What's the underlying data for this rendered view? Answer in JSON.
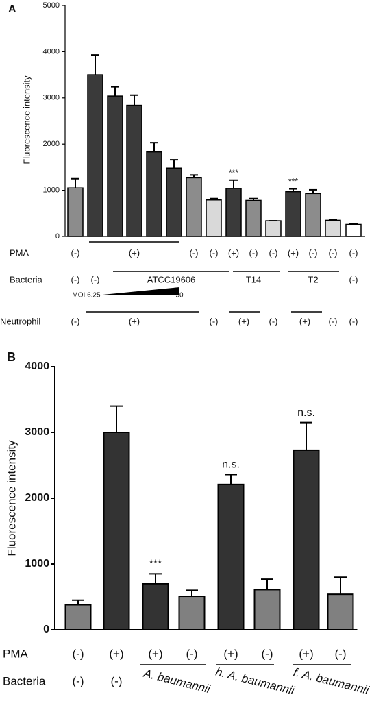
{
  "chart_data": [
    {
      "type": "bar",
      "panel_label": "A",
      "y_label": "Fluorescence intensity",
      "ylim": [
        0,
        5000
      ],
      "yticks": [
        0,
        1000,
        2000,
        3000,
        4000,
        5000
      ],
      "values": [
        1050,
        3500,
        3040,
        2840,
        1830,
        1480,
        1270,
        790,
        1040,
        780,
        340,
        970,
        930,
        350,
        260
      ],
      "errors": [
        200,
        430,
        200,
        220,
        200,
        180,
        60,
        30,
        180,
        40,
        0,
        60,
        80,
        20,
        10
      ],
      "colors": [
        "#8c8c8c",
        "#3a3a3a",
        "#3a3a3a",
        "#3a3a3a",
        "#3a3a3a",
        "#3a3a3a",
        "#8c8c8c",
        "#d9d9d9",
        "#3a3a3a",
        "#8c8c8c",
        "#d9d9d9",
        "#3a3a3a",
        "#8c8c8c",
        "#d9d9d9",
        "#ffffff"
      ],
      "bar_annotations": [
        null,
        null,
        null,
        null,
        null,
        null,
        null,
        null,
        "***",
        null,
        null,
        "***",
        null,
        null,
        null
      ],
      "table_rows": [
        {
          "label": "PMA",
          "cells": [
            "(-)",
            "(+)",
            "(-)",
            "(-)",
            "(+)",
            "(-)",
            "(-)",
            "(+)",
            "(-)",
            "(-)",
            "(-)"
          ]
        },
        {
          "label": "Bacteria",
          "cells": [
            "(-)",
            "(-)",
            "ATCC19606",
            "T14",
            "T2",
            "(-)"
          ]
        },
        {
          "label": null,
          "cells": [
            "MOI 6.25",
            "50"
          ]
        },
        {
          "label": "Neutrophil",
          "cells": [
            "(-)",
            "(+)",
            "(-)",
            "(+)",
            "(-)",
            "(+)",
            "(-)",
            "(-)"
          ]
        }
      ]
    },
    {
      "type": "bar",
      "panel_label": "B",
      "y_label": "Fluorescence intensity",
      "ylim": [
        0,
        4000
      ],
      "yticks": [
        0,
        1000,
        2000,
        3000,
        4000
      ],
      "values": [
        380,
        3000,
        700,
        510,
        2210,
        610,
        2730,
        540
      ],
      "errors": [
        70,
        400,
        150,
        90,
        150,
        160,
        420,
        260
      ],
      "colors": [
        "#808080",
        "#333333",
        "#333333",
        "#808080",
        "#333333",
        "#808080",
        "#333333",
        "#808080"
      ],
      "bar_annotations": [
        null,
        null,
        "***",
        null,
        "n.s.",
        null,
        "n.s.",
        null
      ],
      "table_rows": [
        {
          "label": "PMA",
          "cells": [
            "(-)",
            "(+)",
            "(+)",
            "(-)",
            "(+)",
            "(-)",
            "(+)",
            "(-)"
          ]
        },
        {
          "label": "Bacteria",
          "cells": [
            "(-)",
            "(-)",
            "A. baumannii",
            "h. A. baumannii",
            "f. A. baumannii"
          ]
        }
      ]
    }
  ]
}
